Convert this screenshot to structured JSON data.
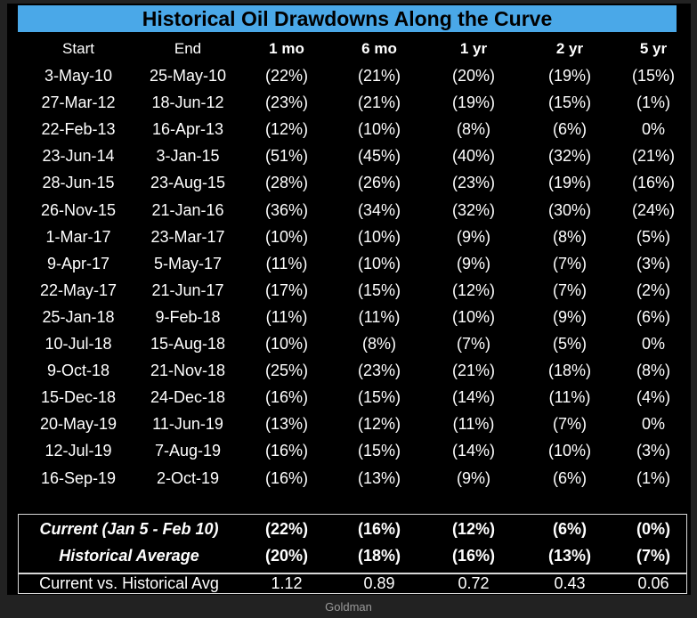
{
  "title": "Historical Oil Drawdowns Along the Curve",
  "headers": [
    "Start",
    "End",
    "1 mo",
    "6 mo",
    "1 yr",
    "2 yr",
    "5 yr"
  ],
  "rows": [
    [
      "3-May-10",
      "25-May-10",
      "(22%)",
      "(21%)",
      "(20%)",
      "(19%)",
      "(15%)"
    ],
    [
      "27-Mar-12",
      "18-Jun-12",
      "(23%)",
      "(21%)",
      "(19%)",
      "(15%)",
      "(1%)"
    ],
    [
      "22-Feb-13",
      "16-Apr-13",
      "(12%)",
      "(10%)",
      "(8%)",
      "(6%)",
      "0%"
    ],
    [
      "23-Jun-14",
      "3-Jan-15",
      "(51%)",
      "(45%)",
      "(40%)",
      "(32%)",
      "(21%)"
    ],
    [
      "28-Jun-15",
      "23-Aug-15",
      "(28%)",
      "(26%)",
      "(23%)",
      "(19%)",
      "(16%)"
    ],
    [
      "26-Nov-15",
      "21-Jan-16",
      "(36%)",
      "(34%)",
      "(32%)",
      "(30%)",
      "(24%)"
    ],
    [
      "1-Mar-17",
      "23-Mar-17",
      "(10%)",
      "(10%)",
      "(9%)",
      "(8%)",
      "(5%)"
    ],
    [
      "9-Apr-17",
      "5-May-17",
      "(11%)",
      "(10%)",
      "(9%)",
      "(7%)",
      "(3%)"
    ],
    [
      "22-May-17",
      "21-Jun-17",
      "(17%)",
      "(15%)",
      "(12%)",
      "(7%)",
      "(2%)"
    ],
    [
      "25-Jan-18",
      "9-Feb-18",
      "(11%)",
      "(11%)",
      "(10%)",
      "(9%)",
      "(6%)"
    ],
    [
      "10-Jul-18",
      "15-Aug-18",
      "(10%)",
      "(8%)",
      "(7%)",
      "(5%)",
      "0%"
    ],
    [
      "9-Oct-18",
      "21-Nov-18",
      "(25%)",
      "(23%)",
      "(21%)",
      "(18%)",
      "(8%)"
    ],
    [
      "15-Dec-18",
      "24-Dec-18",
      "(16%)",
      "(15%)",
      "(14%)",
      "(11%)",
      "(4%)"
    ],
    [
      "20-May-19",
      "11-Jun-19",
      "(13%)",
      "(12%)",
      "(11%)",
      "(7%)",
      "0%"
    ],
    [
      "12-Jul-19",
      "7-Aug-19",
      "(16%)",
      "(15%)",
      "(14%)",
      "(10%)",
      "(3%)"
    ],
    [
      "16-Sep-19",
      "2-Oct-19",
      "(16%)",
      "(13%)",
      "(9%)",
      "(6%)",
      "(1%)"
    ]
  ],
  "summary": [
    {
      "label": "Current (Jan 5 - Feb 10)",
      "values": [
        "(22%)",
        "(16%)",
        "(12%)",
        "(6%)",
        "(0%)"
      ]
    },
    {
      "label": "Historical Average",
      "values": [
        "(20%)",
        "(18%)",
        "(16%)",
        "(13%)",
        "(7%)"
      ]
    },
    {
      "label": "Current vs. Historical Avg",
      "values": [
        "1.12",
        "0.89",
        "0.72",
        "0.43",
        "0.06"
      ]
    }
  ],
  "source": "Goldman",
  "colors": {
    "title_bg": "#4aa8e8",
    "table_bg": "#000000",
    "page_bg": "#222222",
    "border": "#d8d8d8"
  }
}
